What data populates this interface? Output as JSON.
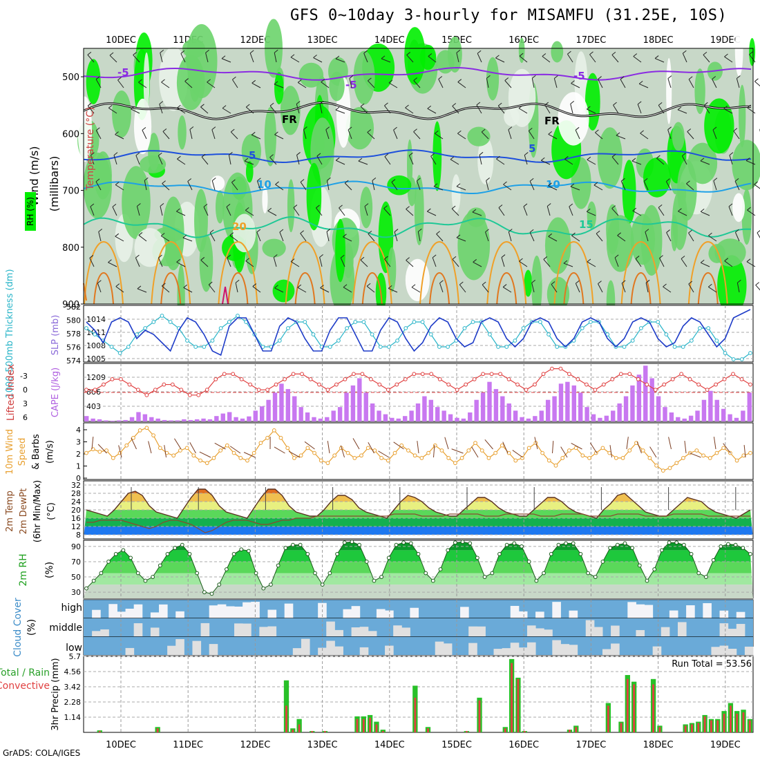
{
  "title": "GFS 0~10day 3-hourly for MISAMFU (31.25E, 10S)",
  "footer": "GrADS: COLA/IGES",
  "dates": [
    "10DEC",
    "11DEC",
    "12DEC",
    "13DEC",
    "14DEC",
    "15DEC",
    "16DEC",
    "17DEC",
    "18DEC",
    "19DEC"
  ],
  "colors": {
    "rh_dark": "#c8d8c8",
    "rh_green": "#6cd46c",
    "rh_bright": "#00ee00",
    "purple": "#8a2be2",
    "blue": "#1e50dc",
    "cyan": "#1ea0e6",
    "teal": "#1ec896",
    "orange": "#f0a028",
    "slp": "#1e3cc8",
    "thick": "#28b4c8",
    "cape": "#c878f0",
    "li": "#e04040",
    "wind": "#e8a030",
    "cloud": "#6aaad8"
  },
  "panels": {
    "upper": {
      "ylabels": [
        "Wind (m/s)",
        "Temperature (°C)",
        "RH (%)"
      ],
      "unit": "(millibars)",
      "yticks": [
        "500",
        "600",
        "700",
        "800",
        "900"
      ],
      "contour_labels": [
        "-5",
        "-5",
        "-5",
        "FR",
        "FR",
        "5",
        "5",
        "10",
        "10",
        "15",
        "20"
      ]
    },
    "slp": {
      "label_thick": "1000-500mb Thickness (dm)",
      "label_slp": "SLP (mb)",
      "left_ticks": [
        "582",
        "580",
        "578",
        "576",
        "574"
      ],
      "right_ticks": [
        "1014",
        "1011",
        "1008",
        "1005"
      ]
    },
    "cape": {
      "label_li": "Lifted Index",
      "label_cape": "CAPE (J/kg)",
      "left_ticks": [
        "-3",
        "0",
        "3",
        "6"
      ],
      "right_ticks": [
        "1209",
        "806",
        "403"
      ]
    },
    "wind": {
      "label": "10m Wind Speed & Barbs (m/s)",
      "label_parts": [
        "10m Wind",
        "Speed",
        "& Barbs",
        "(m/s)"
      ],
      "ticks": [
        "4",
        "3",
        "2",
        "1",
        "0"
      ]
    },
    "temp": {
      "label_parts": [
        "2m Temp",
        "2m DewPt",
        "(6hr Min/Max)",
        "(°C)"
      ],
      "ticks": [
        "32",
        "28",
        "24",
        "20",
        "16",
        "12",
        "8"
      ]
    },
    "rh": {
      "label_parts": [
        "2m RH",
        "(%)"
      ],
      "ticks": [
        "90",
        "70",
        "50",
        "30"
      ]
    },
    "cloud": {
      "label_parts": [
        "Cloud Cover",
        "(%)"
      ],
      "levels": [
        "high",
        "middle",
        "low"
      ]
    },
    "precip": {
      "label_parts": [
        "Total / Rain",
        "Convective",
        "3hr Precip (mm)"
      ],
      "ticks": [
        "5.7",
        "4.56",
        "3.42",
        "2.28",
        "1.14"
      ],
      "run_total": "Run Total = 53.56"
    }
  },
  "chart_data": [
    {
      "type": "line",
      "title": "SLP (mb) / 1000-500mb Thickness (dm)",
      "series": [
        {
          "name": "SLP (mb)",
          "values": [
            1013,
            1011,
            1008,
            1013,
            1014,
            1013,
            1009,
            1011,
            1010,
            1008,
            1006,
            1011,
            1014,
            1013,
            1010,
            1006,
            1005,
            1012,
            1014,
            1014,
            1010,
            1006,
            1006,
            1012,
            1014,
            1013,
            1009,
            1006,
            1006,
            1011,
            1014,
            1014,
            1010,
            1006,
            1006,
            1011,
            1014,
            1013,
            1009,
            1006,
            1008,
            1012,
            1014,
            1013,
            1009,
            1007,
            1008,
            1013,
            1014,
            1013,
            1009,
            1007,
            1009,
            1013,
            1014,
            1013,
            1009,
            1007,
            1009,
            1013,
            1014,
            1013,
            1009,
            1007,
            1009,
            1013,
            1014,
            1013,
            1009,
            1007,
            1008,
            1012,
            1014,
            1013,
            1010,
            1007,
            1009,
            1014,
            1015,
            1016
          ]
        },
        {
          "name": "Thickness (dm)",
          "values": [
            579,
            578,
            577,
            576,
            575,
            576,
            578,
            579,
            580,
            581,
            580,
            579,
            577,
            576,
            576,
            577,
            579,
            580,
            581,
            580,
            578,
            576,
            576,
            577,
            579,
            580,
            580,
            578,
            576,
            576,
            577,
            579,
            580,
            580,
            578,
            576,
            576,
            577,
            579,
            580,
            580,
            578,
            576,
            576,
            577,
            579,
            580,
            580,
            578,
            576,
            576,
            577,
            579,
            580,
            580,
            578,
            576,
            576,
            577,
            579,
            580,
            580,
            578,
            576,
            576,
            577,
            579,
            580,
            580,
            578,
            576,
            576,
            577,
            579,
            579,
            577,
            575,
            574,
            574,
            575
          ]
        }
      ]
    },
    {
      "type": "bar",
      "title": "CAPE (J/kg) / Lifted Index",
      "series": [
        {
          "name": "CAPE (J/kg)",
          "values": [
            150,
            80,
            60,
            30,
            20,
            30,
            40,
            120,
            260,
            200,
            120,
            80,
            40,
            30,
            30,
            60,
            40,
            60,
            80,
            60,
            150,
            220,
            260,
            120,
            80,
            140,
            300,
            420,
            600,
            800,
            1050,
            900,
            700,
            400,
            250,
            120,
            80,
            120,
            300,
            400,
            800,
            1000,
            1200,
            800,
            500,
            300,
            200,
            100,
            80,
            150,
            300,
            500,
            700,
            600,
            400,
            300,
            200,
            100,
            80,
            250,
            600,
            800,
            1100,
            900,
            700,
            500,
            300,
            120,
            80,
            150,
            300,
            600,
            700,
            1050,
            1100,
            1000,
            800,
            400,
            200,
            100,
            160,
            300,
            500,
            700,
            1000,
            1300,
            1550,
            1200,
            700,
            400,
            250,
            120,
            80,
            160,
            300,
            600,
            850,
            600,
            350,
            200,
            100,
            300,
            800
          ]
        },
        {
          "name": "Lifted Index",
          "values": [
            0,
            0,
            -1,
            -2,
            -2,
            -1,
            0,
            1,
            0,
            -1,
            -1,
            0,
            1,
            1,
            0,
            -2,
            -3,
            -3,
            -2,
            -1,
            0,
            0,
            -1,
            -2,
            -3,
            -3,
            -2,
            -1,
            0,
            -1,
            -2,
            -3,
            -3,
            -2,
            -1,
            0,
            -1,
            -2,
            -3,
            -3,
            -3,
            -2,
            -1,
            0,
            -1,
            -2,
            -3,
            -3,
            -3,
            -2,
            -1,
            0,
            -1,
            -3,
            -4,
            -4,
            -3,
            -2,
            -1,
            0,
            -1,
            -2,
            -3,
            -3,
            -2,
            -1,
            0,
            -1,
            -2,
            -3,
            -2,
            -1,
            0,
            -1,
            -2,
            -3,
            -2,
            -1
          ]
        }
      ]
    },
    {
      "type": "line",
      "title": "10m Wind Speed (m/s)",
      "series": [
        {
          "name": "Speed",
          "values": [
            2.0,
            2.3,
            2.1,
            2.2,
            1.6,
            2.0,
            2.6,
            3.2,
            3.8,
            4.0,
            3.4,
            2.4,
            2.0,
            1.8,
            2.2,
            2.4,
            1.8,
            1.4,
            1.2,
            1.6,
            2.2,
            2.6,
            2.0,
            1.6,
            1.4,
            2.0,
            2.8,
            3.2,
            3.8,
            3.2,
            2.4,
            1.6,
            1.8,
            2.4,
            2.0,
            1.4,
            1.2,
            1.8,
            2.4,
            2.0,
            1.6,
            1.8,
            2.4,
            2.2,
            1.6,
            1.4,
            2.0,
            2.6,
            2.2,
            1.8,
            1.6,
            2.0,
            2.6,
            2.2,
            1.6,
            1.2,
            1.6,
            2.2,
            2.8,
            2.2,
            1.6,
            2.0,
            2.6,
            2.0,
            1.4,
            1.6,
            2.4,
            2.8,
            2.0,
            1.4,
            1.0,
            1.6,
            2.2,
            2.4,
            1.8,
            1.6,
            2.0,
            2.4,
            2.0,
            1.6,
            1.6,
            2.2,
            2.8,
            2.2,
            1.6,
            1.0,
            0.6,
            0.8,
            1.2,
            1.6,
            2.0,
            2.2,
            1.8,
            1.6,
            2.0,
            2.4,
            2.0,
            1.4,
            1.8,
            2.0
          ]
        }
      ]
    },
    {
      "type": "area",
      "title": "2m Temp / 2m DewPt (°C)",
      "series": [
        {
          "name": "2m Temp",
          "values": [
            20,
            19,
            18,
            17,
            20,
            24,
            28,
            29,
            27,
            22,
            19,
            18,
            17,
            16,
            21,
            26,
            30,
            30,
            27,
            22,
            19,
            18,
            17,
            16,
            21,
            26,
            30,
            30,
            27,
            22,
            19,
            18,
            17,
            17,
            20,
            24,
            27,
            27,
            25,
            21,
            19,
            18,
            17,
            16,
            20,
            24,
            27,
            26,
            24,
            21,
            19,
            18,
            17,
            17,
            20,
            23,
            26,
            26,
            24,
            21,
            19,
            18,
            17,
            17,
            20,
            23,
            26,
            26,
            24,
            21,
            19,
            18,
            17,
            16,
            20,
            23,
            27,
            28,
            25,
            22,
            19,
            18,
            17,
            17,
            20,
            23,
            26,
            25,
            24,
            21,
            19,
            18,
            17,
            16,
            18,
            20
          ]
        },
        {
          "name": "2m DewPt",
          "values": [
            14,
            14,
            15,
            15,
            15,
            15,
            14,
            13,
            12,
            11,
            12,
            14,
            15,
            15,
            14,
            13,
            11,
            9,
            10,
            12,
            14,
            15,
            15,
            15,
            14,
            13,
            13,
            14,
            15,
            15,
            16,
            16,
            16,
            17,
            17,
            17,
            17,
            17,
            17,
            17,
            17,
            17,
            17,
            17,
            18,
            18,
            18,
            18,
            17,
            17,
            17,
            17,
            18,
            18,
            18,
            18,
            18,
            17,
            17,
            17,
            18,
            18,
            18,
            18,
            18,
            17,
            17,
            17,
            18,
            18,
            18,
            18,
            17,
            17,
            17,
            17,
            18,
            18,
            18,
            18,
            17,
            17,
            17,
            17,
            18,
            18,
            18,
            18,
            18,
            17,
            17,
            17,
            17,
            17,
            17,
            17
          ]
        }
      ]
    },
    {
      "type": "area",
      "title": "2m RH (%)",
      "series": [
        {
          "name": "2m RH",
          "values": [
            35,
            45,
            55,
            70,
            80,
            85,
            75,
            55,
            45,
            50,
            65,
            80,
            88,
            92,
            80,
            55,
            30,
            28,
            40,
            60,
            80,
            86,
            84,
            55,
            35,
            40,
            65,
            88,
            92,
            92,
            80,
            55,
            40,
            55,
            80,
            95,
            96,
            92,
            70,
            45,
            50,
            75,
            92,
            95,
            94,
            80,
            55,
            45,
            60,
            85,
            95,
            96,
            94,
            75,
            50,
            55,
            80,
            92,
            94,
            90,
            70,
            45,
            55,
            80,
            92,
            94,
            94,
            80,
            55,
            50,
            70,
            88,
            92,
            94,
            88,
            65,
            45,
            60,
            85,
            95,
            95,
            92,
            80,
            55,
            50,
            72,
            90,
            93,
            92,
            88,
            80
          ]
        }
      ]
    },
    {
      "type": "heatmap",
      "title": "Cloud Cover (%)",
      "categories": [
        "high",
        "middle",
        "low"
      ]
    },
    {
      "type": "bar",
      "title": "3hr Precip (mm)",
      "series": [
        {
          "name": "Total",
          "values": [
            0,
            0,
            0.15,
            0,
            0,
            0,
            0,
            0,
            0,
            0,
            0,
            0.4,
            0,
            0,
            0,
            0,
            0,
            0,
            0,
            0,
            0,
            0,
            0,
            0,
            0,
            0,
            0,
            0,
            0,
            0,
            0,
            3.9,
            0.3,
            1.0,
            0,
            0.1,
            0,
            0.1,
            0,
            0,
            0,
            0,
            1.2,
            1.2,
            1.3,
            0.8,
            0.2,
            0,
            0,
            0,
            0,
            3.5,
            0,
            0.4,
            0,
            0,
            0,
            0,
            0,
            0.1,
            0,
            2.6,
            0,
            0,
            0,
            0.4,
            5.5,
            4.1,
            0.1,
            0,
            0,
            0,
            0,
            0,
            0,
            0.2,
            0.5,
            0,
            0,
            0,
            0,
            2.2,
            0,
            0.8,
            4.3,
            3.8,
            0,
            0,
            4.0,
            0.5,
            0,
            0,
            0,
            0.6,
            0.7,
            0.8,
            1.3,
            1.0,
            1.0,
            1.6,
            2.2,
            1.6,
            1.7,
            1.0
          ]
        },
        {
          "name": "Convective",
          "values": [
            0,
            0,
            0.1,
            0,
            0,
            0,
            0,
            0,
            0,
            0,
            0,
            0.3,
            0,
            0,
            0,
            0,
            0,
            0,
            0,
            0,
            0,
            0,
            0,
            0,
            0,
            0,
            0,
            0,
            0,
            0,
            0,
            2.0,
            0.2,
            0.6,
            0,
            0.1,
            0,
            0.1,
            0,
            0,
            0,
            0,
            1.0,
            1.0,
            1.1,
            0.6,
            0.1,
            0,
            0,
            0,
            0,
            2.6,
            0,
            0.3,
            0,
            0,
            0,
            0,
            0,
            0.1,
            0,
            2.4,
            0,
            0,
            0,
            0.3,
            5.2,
            4.0,
            0.1,
            0,
            0,
            0,
            0,
            0,
            0,
            0.2,
            0.4,
            0,
            0,
            0,
            0,
            2.0,
            0,
            0.7,
            4.0,
            3.6,
            0,
            0,
            3.6,
            0.4,
            0,
            0,
            0,
            0.5,
            0.6,
            0.7,
            1.2,
            0.9,
            0.9,
            1.4,
            2.0,
            1.4,
            1.5,
            0.9
          ]
        }
      ]
    }
  ]
}
